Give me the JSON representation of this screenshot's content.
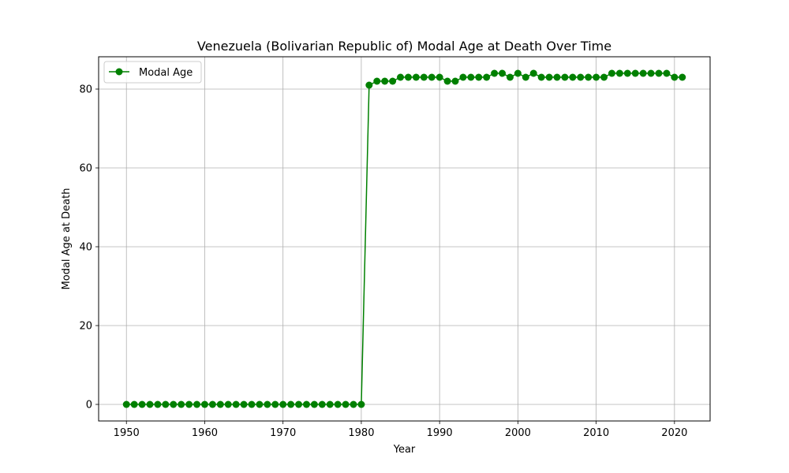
{
  "chart_data": {
    "type": "line",
    "title": "Venezuela (Bolivarian Republic of) Modal Age at Death Over Time",
    "xlabel": "Year",
    "ylabel": "Modal Age at Death",
    "xlim": [
      1946.45,
      2024.55
    ],
    "ylim": [
      -4.2,
      88.2
    ],
    "xticks": [
      1950,
      1960,
      1970,
      1980,
      1990,
      2000,
      2010,
      2020
    ],
    "yticks": [
      0,
      20,
      40,
      60,
      80
    ],
    "grid": true,
    "legend_position": "upper-left",
    "series": [
      {
        "name": "Modal Age",
        "color": "#008000",
        "marker": "circle",
        "x": [
          1950,
          1951,
          1952,
          1953,
          1954,
          1955,
          1956,
          1957,
          1958,
          1959,
          1960,
          1961,
          1962,
          1963,
          1964,
          1965,
          1966,
          1967,
          1968,
          1969,
          1970,
          1971,
          1972,
          1973,
          1974,
          1975,
          1976,
          1977,
          1978,
          1979,
          1980,
          1981,
          1982,
          1983,
          1984,
          1985,
          1986,
          1987,
          1988,
          1989,
          1990,
          1991,
          1992,
          1993,
          1994,
          1995,
          1996,
          1997,
          1998,
          1999,
          2000,
          2001,
          2002,
          2003,
          2004,
          2005,
          2006,
          2007,
          2008,
          2009,
          2010,
          2011,
          2012,
          2013,
          2014,
          2015,
          2016,
          2017,
          2018,
          2019,
          2020,
          2021
        ],
        "values": [
          0,
          0,
          0,
          0,
          0,
          0,
          0,
          0,
          0,
          0,
          0,
          0,
          0,
          0,
          0,
          0,
          0,
          0,
          0,
          0,
          0,
          0,
          0,
          0,
          0,
          0,
          0,
          0,
          0,
          0,
          0,
          81,
          82,
          82,
          82,
          83,
          83,
          83,
          83,
          83,
          83,
          82,
          82,
          83,
          83,
          83,
          83,
          84,
          84,
          83,
          84,
          83,
          84,
          83,
          83,
          83,
          83,
          83,
          83,
          83,
          83,
          83,
          84,
          84,
          84,
          84,
          84,
          84,
          84,
          84,
          83,
          83
        ]
      }
    ]
  }
}
